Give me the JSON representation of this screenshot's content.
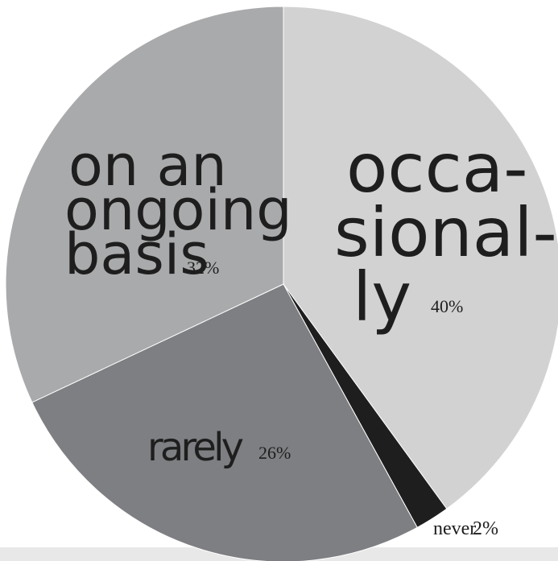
{
  "chart_data": {
    "type": "pie",
    "slices": [
      {
        "label": "occasionally",
        "label_lines": [
          "occa-",
          "sional-",
          "ly"
        ],
        "percent_label": "40%",
        "value": 40,
        "color": "#d2d2d2"
      },
      {
        "label": "never",
        "label_lines": [
          "never"
        ],
        "percent_label": "2%",
        "value": 2,
        "color": "#1e1e1e"
      },
      {
        "label": "rarely",
        "label_lines": [
          "rarely"
        ],
        "percent_label": "26%",
        "value": 26,
        "color": "#7e7f82"
      },
      {
        "label": "on an ongoing basis",
        "label_lines": [
          "on an",
          "ongoing",
          "basis"
        ],
        "percent_label": "32%",
        "value": 32,
        "color": "#a9aaac"
      }
    ]
  }
}
